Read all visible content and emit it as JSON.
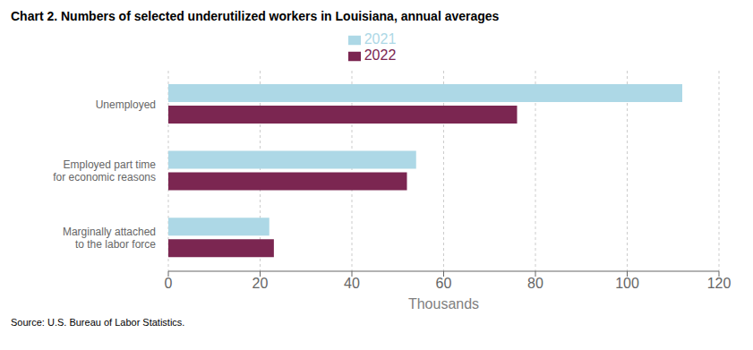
{
  "chart_data": {
    "type": "bar",
    "orientation": "horizontal",
    "title": "Chart 2. Numbers of selected underutilized workers in Louisiana, annual averages",
    "categories": [
      "Unemployed",
      "Employed part time\nfor economic reasons",
      "Marginally attached\nto the labor force"
    ],
    "series": [
      {
        "name": "2021",
        "color": "#ADD8E6",
        "values": [
          112,
          54,
          22
        ]
      },
      {
        "name": "2022",
        "color": "#7B2651",
        "values": [
          76,
          52,
          23
        ]
      }
    ],
    "xlabel": "Thousands",
    "xlim": [
      0,
      120
    ],
    "xticks": [
      0,
      20,
      40,
      60,
      80,
      100,
      120
    ],
    "grid": true,
    "legend": "top",
    "annotations": [
      "Source: U.S. Bureau of Labor Statistics."
    ]
  }
}
